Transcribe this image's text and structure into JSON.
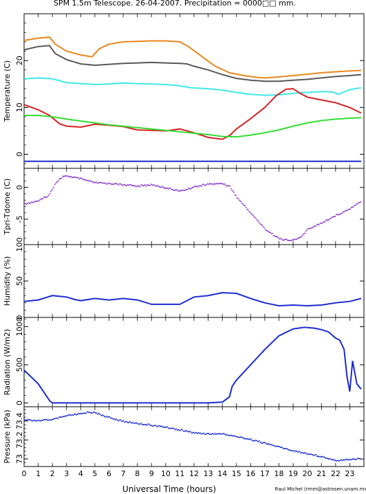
{
  "title": "SPM 1.5m Telescope. 26-04-2007. Precipitation = 0000□□ mm.",
  "xlabel": "Universal Time (hours)",
  "credit": "Raul Michel (rmm@astrosen.unam.mx)",
  "x_ticks": [
    "0",
    "1",
    "2",
    "3",
    "4",
    "5",
    "6",
    "7",
    "8",
    "9",
    "10",
    "11",
    "12",
    "13",
    "14",
    "15",
    "16",
    "17",
    "18",
    "19",
    "20",
    "21",
    "22",
    "23"
  ],
  "chart_data": [
    {
      "type": "line",
      "ylabel": "Temperature (C)",
      "ylim": [
        -3,
        30
      ],
      "yticks": [
        0,
        10,
        20
      ],
      "series": [
        {
          "color": "#e8861c",
          "points": [
            [
              0,
              24.3
            ],
            [
              1,
              24.8
            ],
            [
              1.8,
              25.0
            ],
            [
              2.2,
              23.5
            ],
            [
              3,
              22.0
            ],
            [
              4,
              21.2
            ],
            [
              4.8,
              20.8
            ],
            [
              5.3,
              22.5
            ],
            [
              6,
              23.5
            ],
            [
              7,
              24.0
            ],
            [
              8,
              24.1
            ],
            [
              9,
              24.2
            ],
            [
              10,
              24.2
            ],
            [
              11,
              24.0
            ],
            [
              11.6,
              23.0
            ],
            [
              12.5,
              21.0
            ],
            [
              13.5,
              18.8
            ],
            [
              14.5,
              17.4
            ],
            [
              15.5,
              16.8
            ],
            [
              16.5,
              16.4
            ],
            [
              17,
              16.3
            ],
            [
              18,
              16.5
            ],
            [
              19,
              16.8
            ],
            [
              20,
              17.1
            ],
            [
              21,
              17.4
            ],
            [
              22,
              17.6
            ],
            [
              23,
              17.8
            ],
            [
              23.8,
              17.9
            ]
          ]
        },
        {
          "color": "#575757",
          "points": [
            [
              0,
              22.3
            ],
            [
              1,
              23.0
            ],
            [
              1.8,
              23.2
            ],
            [
              2.2,
              21.5
            ],
            [
              3,
              20.2
            ],
            [
              4,
              19.3
            ],
            [
              5,
              19.0
            ],
            [
              6,
              19.2
            ],
            [
              7,
              19.4
            ],
            [
              8,
              19.5
            ],
            [
              9,
              19.6
            ],
            [
              10,
              19.5
            ],
            [
              11,
              19.4
            ],
            [
              11.5,
              19.3
            ],
            [
              12,
              18.8
            ],
            [
              13,
              18.0
            ],
            [
              14,
              17.0
            ],
            [
              15,
              16.2
            ],
            [
              16,
              15.8
            ],
            [
              17,
              15.6
            ],
            [
              18,
              15.6
            ],
            [
              19,
              15.8
            ],
            [
              20,
              16.0
            ],
            [
              21,
              16.3
            ],
            [
              22,
              16.6
            ],
            [
              23,
              16.8
            ],
            [
              23.8,
              17.0
            ]
          ]
        },
        {
          "color": "#3ee8e8",
          "points": [
            [
              0,
              16.1
            ],
            [
              1,
              16.3
            ],
            [
              2,
              16.1
            ],
            [
              3,
              15.3
            ],
            [
              4,
              15.1
            ],
            [
              5,
              14.9
            ],
            [
              6,
              15.0
            ],
            [
              7,
              15.2
            ],
            [
              8,
              15.1
            ],
            [
              9,
              15.0
            ],
            [
              10,
              14.9
            ],
            [
              11,
              14.6
            ],
            [
              11.8,
              14.2
            ],
            [
              13,
              14.0
            ],
            [
              14,
              13.7
            ],
            [
              15,
              13.2
            ],
            [
              16,
              12.8
            ],
            [
              17,
              12.6
            ],
            [
              18,
              12.7
            ],
            [
              19,
              13.0
            ],
            [
              20,
              13.2
            ],
            [
              21,
              13.4
            ],
            [
              21.8,
              13.3
            ],
            [
              22.2,
              12.8
            ],
            [
              23,
              13.8
            ],
            [
              23.8,
              14.2
            ]
          ]
        },
        {
          "color": "#d42222",
          "points": [
            [
              0,
              10.6
            ],
            [
              1,
              9.5
            ],
            [
              1.8,
              8.3
            ],
            [
              2.5,
              6.5
            ],
            [
              3,
              6.0
            ],
            [
              4,
              5.8
            ],
            [
              5,
              6.4
            ],
            [
              6,
              6.2
            ],
            [
              7,
              5.9
            ],
            [
              8,
              5.2
            ],
            [
              9,
              5.1
            ],
            [
              10,
              5.0
            ],
            [
              11,
              5.4
            ],
            [
              12,
              4.6
            ],
            [
              13,
              3.6
            ],
            [
              14,
              3.2
            ],
            [
              14.5,
              4.0
            ],
            [
              15,
              5.4
            ],
            [
              16,
              7.6
            ],
            [
              17,
              10.0
            ],
            [
              17.8,
              12.5
            ],
            [
              18.5,
              13.9
            ],
            [
              19,
              14.0
            ],
            [
              19.5,
              13.0
            ],
            [
              20,
              12.2
            ],
            [
              21,
              11.6
            ],
            [
              22,
              11.0
            ],
            [
              23,
              10.0
            ],
            [
              23.8,
              8.8
            ]
          ]
        },
        {
          "color": "#33dd33",
          "points": [
            [
              0,
              8.3
            ],
            [
              1,
              8.3
            ],
            [
              2,
              8.0
            ],
            [
              3,
              7.5
            ],
            [
              4,
              7.1
            ],
            [
              5,
              6.7
            ],
            [
              6,
              6.3
            ],
            [
              7,
              6.0
            ],
            [
              8,
              5.7
            ],
            [
              9,
              5.4
            ],
            [
              10,
              5.1
            ],
            [
              11,
              4.8
            ],
            [
              12,
              4.5
            ],
            [
              13,
              4.2
            ],
            [
              14,
              3.8
            ],
            [
              15,
              3.7
            ],
            [
              16,
              4.1
            ],
            [
              17,
              4.6
            ],
            [
              18,
              5.2
            ],
            [
              19,
              6.0
            ],
            [
              20,
              6.7
            ],
            [
              21,
              7.2
            ],
            [
              22,
              7.5
            ],
            [
              23,
              7.7
            ],
            [
              23.8,
              7.8
            ]
          ]
        },
        {
          "color": "#1a2ad0",
          "points": [
            [
              0,
              -1.5
            ],
            [
              23.8,
              -1.5
            ]
          ]
        }
      ]
    },
    {
      "type": "scatter",
      "ylabel": "Tpri-Tdome (C)",
      "ylim": [
        -9,
        3
      ],
      "yticks": [
        -5,
        0
      ],
      "series": [
        {
          "color": "#8833cc",
          "points": [
            [
              0,
              -2.5
            ],
            [
              1,
              -2.0
            ],
            [
              1.7,
              -1.2
            ],
            [
              2.2,
              0.8
            ],
            [
              2.7,
              1.8
            ],
            [
              3.2,
              1.8
            ],
            [
              4,
              1.4
            ],
            [
              5,
              0.8
            ],
            [
              6,
              0.7
            ],
            [
              7,
              0.5
            ],
            [
              8,
              0.3
            ],
            [
              9,
              0.5
            ],
            [
              10,
              0.0
            ],
            [
              11,
              -0.5
            ],
            [
              11.5,
              -0.2
            ],
            [
              12,
              0.2
            ],
            [
              13,
              0.6
            ],
            [
              14,
              0.7
            ],
            [
              14.5,
              0.2
            ],
            [
              15,
              -1.5
            ],
            [
              16,
              -4.0
            ],
            [
              17,
              -6.5
            ],
            [
              18,
              -8.0
            ],
            [
              18.8,
              -8.3
            ],
            [
              19.5,
              -7.8
            ],
            [
              20,
              -6.5
            ],
            [
              21,
              -5.5
            ],
            [
              22,
              -4.3
            ],
            [
              22.5,
              -3.8
            ],
            [
              23,
              -3.2
            ],
            [
              23.8,
              -2.0
            ]
          ]
        }
      ]
    },
    {
      "type": "line",
      "ylabel": "Humidity (%)",
      "ylim": [
        0,
        100
      ],
      "yticks": [
        0,
        50,
        100
      ],
      "series": [
        {
          "color": "#1a2ad0",
          "points": [
            [
              0,
              22
            ],
            [
              1,
              24
            ],
            [
              2,
              30
            ],
            [
              3,
              28
            ],
            [
              3.5,
              25
            ],
            [
              4,
              23
            ],
            [
              5,
              26
            ],
            [
              6,
              24
            ],
            [
              7,
              26
            ],
            [
              8,
              24
            ],
            [
              9,
              18
            ],
            [
              10,
              18
            ],
            [
              11,
              18
            ],
            [
              12,
              28
            ],
            [
              13,
              30
            ],
            [
              14,
              34
            ],
            [
              15,
              33
            ],
            [
              16,
              26
            ],
            [
              17,
              20
            ],
            [
              18,
              16
            ],
            [
              19,
              17
            ],
            [
              20,
              16
            ],
            [
              21,
              17
            ],
            [
              22,
              20
            ],
            [
              23,
              22
            ],
            [
              23.8,
              26
            ]
          ]
        }
      ]
    },
    {
      "type": "line",
      "ylabel": "Radiation (W/m2)",
      "ylim": [
        -50,
        1120
      ],
      "yticks": [
        0,
        500,
        1000
      ],
      "series": [
        {
          "color": "#1a2ad0",
          "points": [
            [
              0,
              430
            ],
            [
              1,
              250
            ],
            [
              1.8,
              30
            ],
            [
              2,
              0
            ],
            [
              3,
              0
            ],
            [
              5,
              0
            ],
            [
              7,
              0
            ],
            [
              9,
              0
            ],
            [
              11,
              0
            ],
            [
              13,
              0
            ],
            [
              14,
              10
            ],
            [
              14.5,
              80
            ],
            [
              14.7,
              220
            ],
            [
              15,
              300
            ],
            [
              16,
              500
            ],
            [
              17,
              700
            ],
            [
              18,
              880
            ],
            [
              19,
              970
            ],
            [
              19.8,
              990
            ],
            [
              20.5,
              980
            ],
            [
              21,
              960
            ],
            [
              21.5,
              930
            ],
            [
              22,
              850
            ],
            [
              22.3,
              820
            ],
            [
              22.6,
              700
            ],
            [
              22.8,
              350
            ],
            [
              23,
              150
            ],
            [
              23.2,
              550
            ],
            [
              23.5,
              250
            ],
            [
              23.8,
              180
            ]
          ]
        }
      ]
    },
    {
      "type": "scatter",
      "ylabel": "Pressure (kPa)",
      "ylim": [
        72.92,
        73.55
      ],
      "yticks": [
        73,
        73.2,
        73.4
      ],
      "series": [
        {
          "color": "#1a2ad0",
          "points": [
            [
              0,
              73.42
            ],
            [
              1,
              73.41
            ],
            [
              2,
              73.42
            ],
            [
              2.5,
              73.44
            ],
            [
              3,
              73.46
            ],
            [
              4,
              73.48
            ],
            [
              4.5,
              73.5
            ],
            [
              5,
              73.49
            ],
            [
              6,
              73.44
            ],
            [
              7,
              73.4
            ],
            [
              8,
              73.38
            ],
            [
              9,
              73.36
            ],
            [
              10,
              73.34
            ],
            [
              11,
              73.31
            ],
            [
              12,
              73.28
            ],
            [
              13,
              73.27
            ],
            [
              14,
              73.27
            ],
            [
              15,
              73.24
            ],
            [
              16,
              73.21
            ],
            [
              17,
              73.17
            ],
            [
              18,
              73.13
            ],
            [
              19,
              73.09
            ],
            [
              20,
              73.06
            ],
            [
              21,
              73.03
            ],
            [
              22,
              72.99
            ],
            [
              23,
              73.0
            ],
            [
              23.8,
              73.01
            ]
          ]
        }
      ]
    }
  ]
}
